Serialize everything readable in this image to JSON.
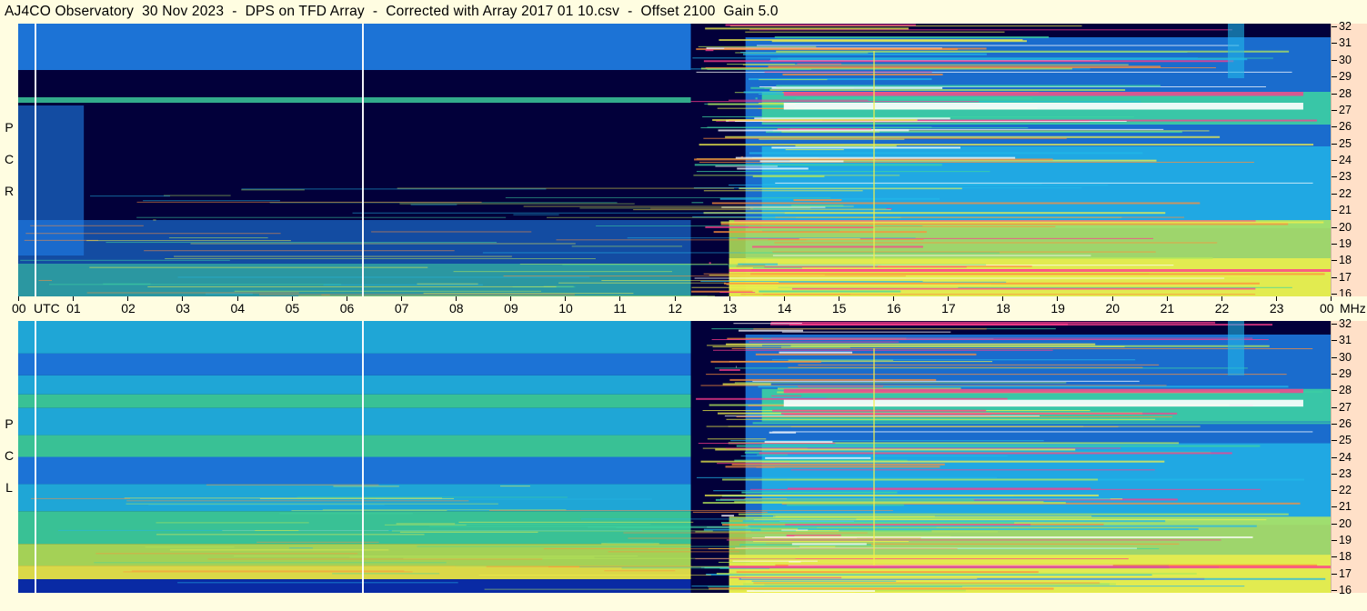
{
  "title": "AJ4CO Observatory  30 Nov 2023  -  DPS on TFD Array  -  Corrected with Array 2017 01 10.csv  -  Offset 2100  Gain 5.0",
  "rcp_label": [
    "R",
    "C",
    "P"
  ],
  "lcp_label": [
    "L",
    "C",
    "P"
  ],
  "utc_label": "UTC",
  "mhz_label": "MHz",
  "colors": {
    "background": "#fffde1",
    "freq_axis_bg": "#ffe0c8",
    "quiet": "#02003a",
    "palette": [
      "#02003a",
      "#0a2fb0",
      "#1f7fe8",
      "#22b8e8",
      "#3fd6a0",
      "#b6e85a",
      "#f2f04a",
      "#ff8f3a",
      "#ff3c8c",
      "#ffffff"
    ]
  },
  "chart_data": [
    {
      "type": "heatmap",
      "name": "RCP",
      "xlabel": "UTC",
      "ylabel": "MHz",
      "x_ticks": [
        "00",
        "01",
        "02",
        "03",
        "04",
        "05",
        "06",
        "07",
        "08",
        "09",
        "10",
        "11",
        "12",
        "13",
        "14",
        "15",
        "16",
        "17",
        "18",
        "19",
        "20",
        "21",
        "22",
        "23",
        "00"
      ],
      "y_ticks": [
        32,
        31,
        30,
        29,
        28,
        27,
        26,
        25,
        24,
        23,
        22,
        21,
        20,
        19,
        18,
        17,
        16
      ],
      "xlim": [
        0,
        24
      ],
      "ylim": [
        16,
        32
      ]
    },
    {
      "type": "heatmap",
      "name": "LCP",
      "xlabel": "UTC",
      "ylabel": "MHz",
      "x_ticks": [
        "00",
        "01",
        "02",
        "03",
        "04",
        "05",
        "06",
        "07",
        "08",
        "09",
        "10",
        "11",
        "12",
        "13",
        "14",
        "15",
        "16",
        "17",
        "18",
        "19",
        "20",
        "21",
        "22",
        "23",
        "00"
      ],
      "y_ticks": [
        32,
        31,
        30,
        29,
        28,
        27,
        26,
        25,
        24,
        23,
        22,
        21,
        20,
        19,
        18,
        17,
        16
      ],
      "xlim": [
        0,
        24
      ],
      "ylim": [
        16,
        32
      ]
    }
  ]
}
